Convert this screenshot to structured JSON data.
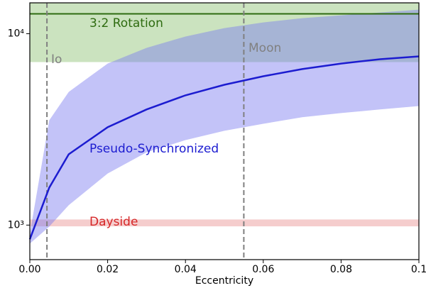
{
  "chart_data": {
    "type": "line",
    "xlabel": "Eccentricity",
    "xlim": [
      0,
      0.1
    ],
    "ylim": [
      660,
      14500
    ],
    "log_y": true,
    "xticks": [
      {
        "value": 0,
        "label": "0.00"
      },
      0.02,
      0.04,
      0.06,
      0.08,
      0.1
    ],
    "yticks": [
      {
        "value": 1000,
        "label": "10³"
      },
      {
        "value": 10000,
        "label": "10⁴"
      }
    ],
    "x": [
      0,
      0.005,
      0.01,
      0.02,
      0.03,
      0.04,
      0.05,
      0.06,
      0.07,
      0.08,
      0.09,
      0.1
    ],
    "series": [
      {
        "name": "Pseudo-Synchronized",
        "color": "#1c1cd0",
        "band_color": "#7a7af0",
        "values": [
          843,
          1570,
          2345,
          3245,
          4020,
          4765,
          5410,
          5995,
          6535,
          6985,
          7360,
          7610
        ],
        "lower": [
          800,
          983,
          1270,
          1860,
          2400,
          2780,
          3110,
          3385,
          3660,
          3850,
          4020,
          4190
        ],
        "upper": [
          900,
          3530,
          4965,
          6985,
          8430,
          9670,
          10700,
          11460,
          12060,
          12480,
          12910,
          13360
        ]
      }
    ],
    "regions": [
      {
        "name": "3:2 Rotation",
        "lower": 7110,
        "upper": 14500,
        "line": 12700,
        "color": "#8cc070",
        "line_color": "#2e6b10"
      },
      {
        "name": "Dayside",
        "lower": 985,
        "upper": 1070,
        "color": "#e89090",
        "text_color": "#d62728"
      }
    ],
    "vlines": [
      {
        "name": "Io",
        "x": 0.0044,
        "color": "#808080"
      },
      {
        "name": "Moon",
        "x": 0.055,
        "color": "#808080"
      }
    ]
  }
}
